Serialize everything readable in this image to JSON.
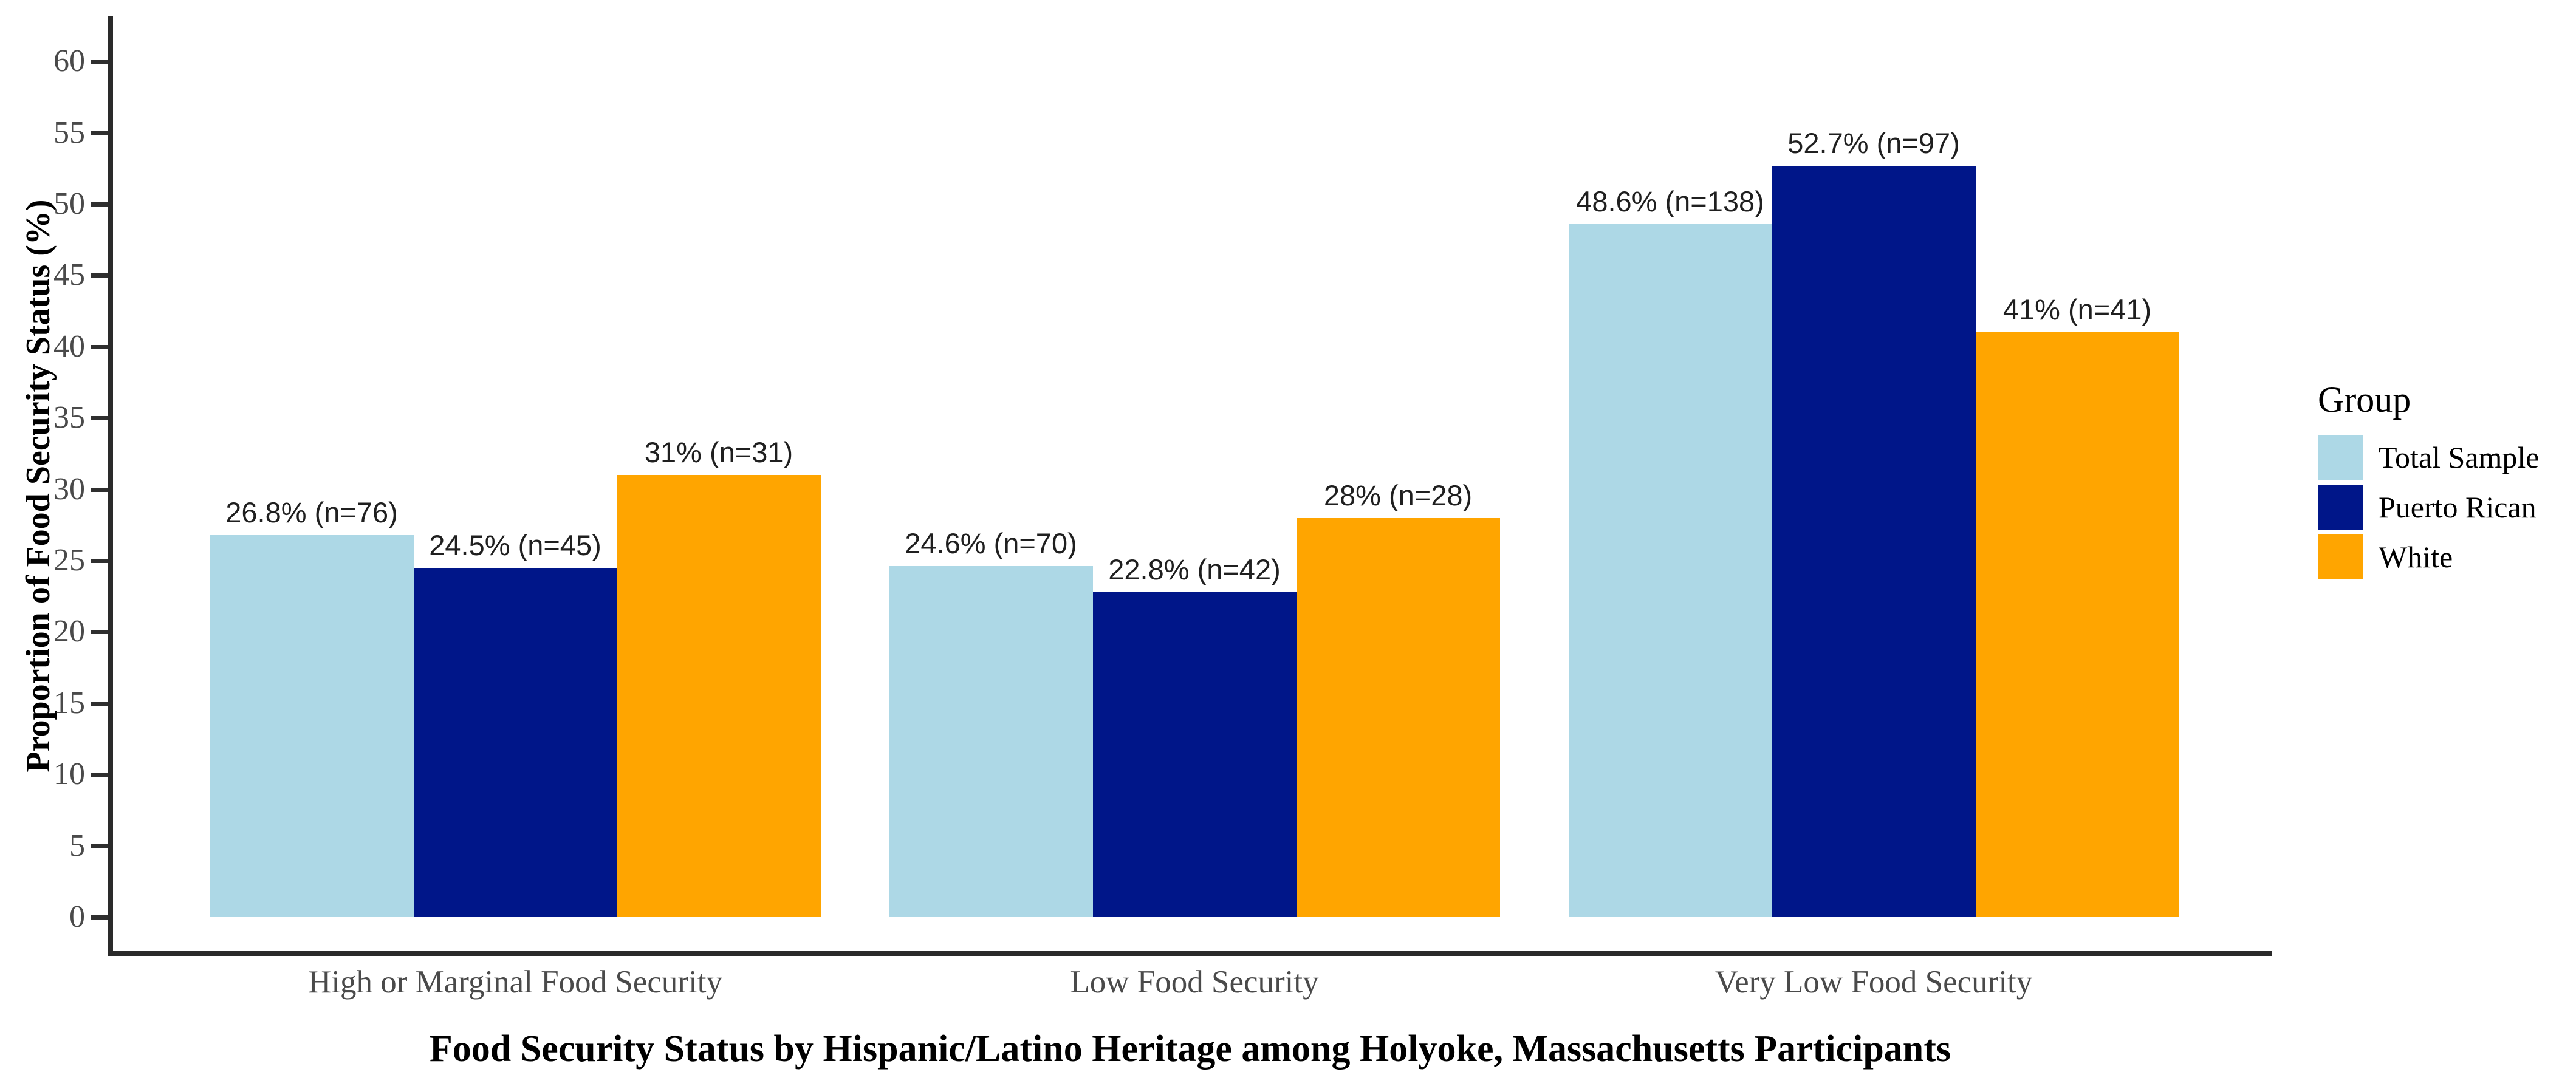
{
  "chart_data": {
    "type": "bar",
    "title": "",
    "xlabel": "Food Security Status by Hispanic/Latino Heritage among Holyoke, Massachusetts Participants",
    "ylabel": "Proportion of Food Security Status (%)",
    "categories": [
      "High or Marginal Food Security",
      "Low Food Security",
      "Very Low Food Security"
    ],
    "series": [
      {
        "name": "Total Sample",
        "color": "#ADD8E6",
        "values": [
          26.8,
          24.6,
          48.6
        ],
        "labels": [
          "26.8% (n=76)",
          "24.6% (n=70)",
          "48.6% (n=138)"
        ]
      },
      {
        "name": "Puerto Rican",
        "color": "#001689",
        "values": [
          24.5,
          22.8,
          52.7
        ],
        "labels": [
          "24.5% (n=45)",
          "22.8% (n=42)",
          "52.7% (n=97)"
        ]
      },
      {
        "name": "White",
        "color": "#FFA500",
        "values": [
          31,
          28,
          41
        ],
        "labels": [
          "31% (n=31)",
          "28% (n=28)",
          "41% (n=41)"
        ]
      }
    ],
    "y_ticks": [
      0,
      5,
      10,
      15,
      20,
      25,
      30,
      35,
      40,
      45,
      50,
      55,
      60
    ],
    "ylim": [
      0,
      63
    ],
    "grid": false,
    "legend_title": "Group",
    "legend_position": "right",
    "colors": {
      "axis_line": "#2a2a2a",
      "tick_text": "#4a4a4a",
      "label_text": "#1f1f1f"
    }
  }
}
